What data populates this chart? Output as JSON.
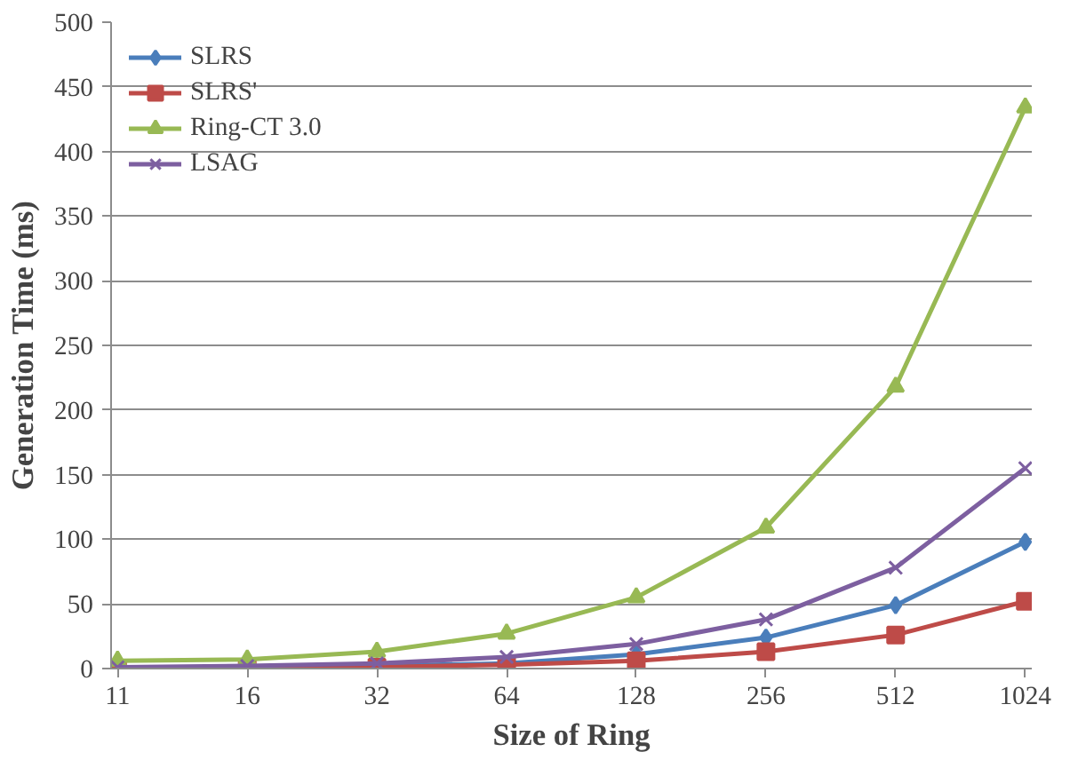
{
  "chart_data": {
    "type": "line",
    "xlabel": "Size of Ring",
    "ylabel": "Generation Time (ms)",
    "categories": [
      "11",
      "16",
      "32",
      "64",
      "128",
      "256",
      "512",
      "1024"
    ],
    "series": [
      {
        "name": "SLRS",
        "color": "#4a7ebb",
        "marker": "diamond",
        "values": [
          1,
          1,
          2,
          4,
          11,
          24,
          49,
          98
        ]
      },
      {
        "name": "SLRS'",
        "color": "#be4b48",
        "marker": "square",
        "values": [
          0,
          1,
          1,
          3,
          6,
          13,
          26,
          52
        ]
      },
      {
        "name": "Ring-CT 3.0",
        "color": "#98b954",
        "marker": "triangle",
        "values": [
          6,
          7,
          13,
          27,
          55,
          109,
          218,
          434
        ]
      },
      {
        "name": "LSAG",
        "color": "#7d5fa0",
        "marker": "cross",
        "values": [
          1,
          2,
          4,
          9,
          19,
          38,
          78,
          155
        ]
      }
    ],
    "ylim": [
      0,
      500
    ],
    "yticks": [
      0,
      50,
      100,
      150,
      200,
      250,
      300,
      350,
      400,
      450,
      500
    ],
    "grid": "y",
    "legend": "top left",
    "line_style": "solid"
  }
}
